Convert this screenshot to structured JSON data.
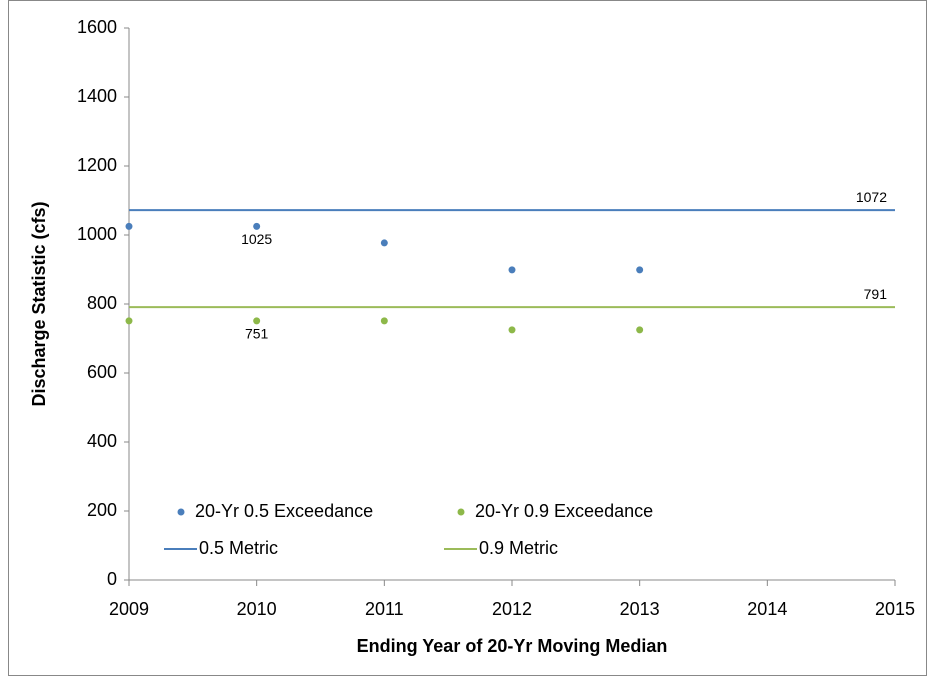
{
  "chart_data": {
    "type": "scatter",
    "x_label": "Ending Year of 20-Yr Moving Median",
    "y_label": "Discharge Statistic (cfs)",
    "xlim": [
      2009,
      2015
    ],
    "xticks": [
      2009,
      2010,
      2011,
      2012,
      2013,
      2014,
      2015
    ],
    "ylim": [
      0,
      1600
    ],
    "yticks": [
      0,
      200,
      400,
      600,
      800,
      1000,
      1200,
      1400,
      1600
    ],
    "grid": false,
    "legend": "lower left",
    "series": [
      {
        "name": "20-Yr 0.5 Exceedance",
        "style": "marker",
        "color": "#4a7ebb",
        "x": [
          2009,
          2010,
          2011,
          2012,
          2013
        ],
        "values": [
          1025,
          1025,
          977,
          899,
          899
        ],
        "value_labels": [
          null,
          "1025",
          null,
          null,
          null
        ]
      },
      {
        "name": "20-Yr 0.9 Exceedance",
        "style": "marker",
        "color": "#8db849",
        "x": [
          2009,
          2010,
          2011,
          2012,
          2013
        ],
        "values": [
          751,
          751,
          751,
          725,
          725
        ],
        "value_labels": [
          null,
          "751",
          null,
          null,
          null
        ]
      },
      {
        "name": "0.5 Metric",
        "style": "line",
        "color": "#4a7ebb",
        "x": [
          2009,
          2015
        ],
        "values": [
          1072,
          1072
        ],
        "value_labels": [
          null,
          "1072"
        ]
      },
      {
        "name": "0.9 Metric",
        "style": "line",
        "color": "#9bbb59",
        "x": [
          2009,
          2015
        ],
        "values": [
          791,
          791
        ],
        "value_labels": [
          null,
          "791"
        ]
      }
    ]
  }
}
